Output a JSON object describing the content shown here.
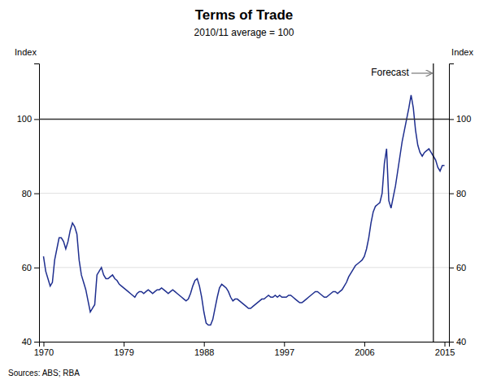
{
  "chart_data": {
    "type": "line",
    "title": "Terms of Trade",
    "subtitle": "2010/11 average = 100",
    "y_label": "Index",
    "y2_label": "Index",
    "source": "Sources: ABS; RBA",
    "xlim": [
      1969.5,
      2015.5
    ],
    "xticks": [
      1970,
      1979,
      1988,
      1997,
      2006,
      2015
    ],
    "ylim": [
      40,
      115
    ],
    "yticks": [
      40,
      60,
      80,
      100
    ],
    "y2lim": [
      40,
      115
    ],
    "y2ticks": [
      40,
      60,
      80,
      100
    ],
    "grid": true,
    "hlines": [
      {
        "y": 100,
        "color": "#333333"
      }
    ],
    "vlines": [
      {
        "x": 2013.75,
        "color": "#000000"
      }
    ],
    "annotations": [
      {
        "text": "Forecast",
        "color": "#777777"
      }
    ],
    "x": [
      1970,
      1970.25,
      1970.5,
      1970.75,
      1971,
      1971.25,
      1971.5,
      1971.75,
      1972,
      1972.25,
      1972.5,
      1972.75,
      1973,
      1973.25,
      1973.5,
      1973.75,
      1974,
      1974.25,
      1974.5,
      1974.75,
      1975,
      1975.25,
      1975.5,
      1975.75,
      1976,
      1976.25,
      1976.5,
      1976.75,
      1977,
      1977.25,
      1977.5,
      1977.75,
      1978,
      1978.25,
      1978.5,
      1978.75,
      1979,
      1979.25,
      1979.5,
      1979.75,
      1980,
      1980.25,
      1980.5,
      1980.75,
      1981,
      1981.25,
      1981.5,
      1981.75,
      1982,
      1982.25,
      1982.5,
      1982.75,
      1983,
      1983.25,
      1983.5,
      1983.75,
      1984,
      1984.25,
      1984.5,
      1984.75,
      1985,
      1985.25,
      1985.5,
      1985.75,
      1986,
      1986.25,
      1986.5,
      1986.75,
      1987,
      1987.25,
      1987.5,
      1987.75,
      1988,
      1988.25,
      1988.5,
      1988.75,
      1989,
      1989.25,
      1989.5,
      1989.75,
      1990,
      1990.25,
      1990.5,
      1990.75,
      1991,
      1991.25,
      1991.5,
      1991.75,
      1992,
      1992.25,
      1992.5,
      1992.75,
      1993,
      1993.25,
      1993.5,
      1993.75,
      1994,
      1994.25,
      1994.5,
      1994.75,
      1995,
      1995.25,
      1995.5,
      1995.75,
      1996,
      1996.25,
      1996.5,
      1996.75,
      1997,
      1997.25,
      1997.5,
      1997.75,
      1998,
      1998.25,
      1998.5,
      1998.75,
      1999,
      1999.25,
      1999.5,
      1999.75,
      2000,
      2000.25,
      2000.5,
      2000.75,
      2001,
      2001.25,
      2001.5,
      2001.75,
      2002,
      2002.25,
      2002.5,
      2002.75,
      2003,
      2003.25,
      2003.5,
      2003.75,
      2004,
      2004.25,
      2004.5,
      2004.75,
      2005,
      2005.25,
      2005.5,
      2005.75,
      2006,
      2006.25,
      2006.5,
      2006.75,
      2007,
      2007.25,
      2007.5,
      2007.75,
      2008,
      2008.25,
      2008.5,
      2008.75,
      2009,
      2009.25,
      2009.5,
      2009.75,
      2010,
      2010.25,
      2010.5,
      2010.75,
      2011,
      2011.25,
      2011.5,
      2011.75,
      2012,
      2012.25,
      2012.5,
      2012.75,
      2013,
      2013.25,
      2013.5,
      2013.75,
      2014,
      2014.25,
      2014.5,
      2014.75,
      2015
    ],
    "series": [
      {
        "color": "#1f2f8f",
        "values": [
          63,
          59,
          57,
          55,
          56,
          62,
          65,
          68,
          68,
          67,
          65,
          67,
          70,
          72,
          71,
          69,
          62,
          58,
          56,
          54,
          51,
          48,
          49,
          50,
          58,
          59,
          60,
          58,
          57,
          57,
          57.5,
          58,
          57,
          56.5,
          55.5,
          55,
          54.5,
          54,
          53.5,
          53,
          52.5,
          52,
          53,
          53.5,
          53.5,
          53,
          53.5,
          54,
          53.5,
          53,
          53.5,
          54,
          54,
          54.5,
          54,
          53.5,
          53,
          53.5,
          54,
          53.5,
          53,
          52.5,
          52,
          51.5,
          51,
          51.5,
          53,
          55,
          56.5,
          57,
          55,
          52,
          48,
          45,
          44.5,
          44.5,
          46,
          49,
          52,
          54.5,
          55.5,
          55,
          54.5,
          53.5,
          52,
          51,
          51.5,
          51.5,
          51,
          50.5,
          50,
          49.5,
          49,
          49,
          49.5,
          50,
          50.5,
          51,
          51.5,
          51.5,
          52,
          52.5,
          52,
          52,
          52.5,
          52,
          52.5,
          52,
          52,
          52,
          52.5,
          52.5,
          52,
          51.5,
          51,
          50.5,
          50.5,
          51,
          51.5,
          52,
          52.5,
          53,
          53.5,
          53.5,
          53,
          52.5,
          52,
          52,
          52.5,
          53,
          53.5,
          53.5,
          53,
          53.5,
          54,
          55,
          56,
          57.5,
          58.5,
          59.5,
          60.5,
          61,
          61.5,
          62,
          63,
          65,
          68,
          72,
          75,
          76.5,
          77,
          77.5,
          80,
          88,
          92,
          78,
          76,
          79,
          82,
          86,
          90,
          94,
          97,
          100,
          103,
          106.5,
          103,
          97,
          93,
          91,
          90,
          91,
          91.5,
          92,
          91,
          90,
          89,
          87,
          86,
          87.5,
          87.5
        ]
      }
    ]
  }
}
